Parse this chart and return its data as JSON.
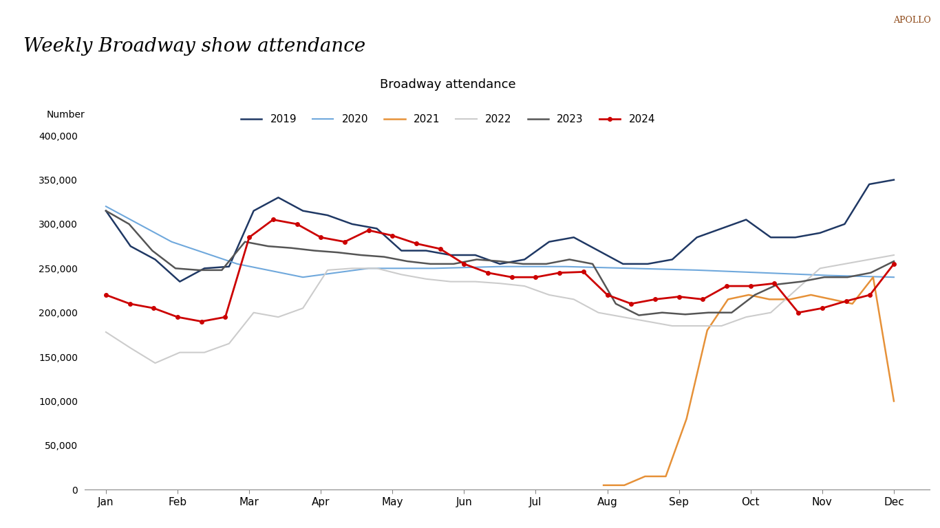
{
  "title": "Weekly Broadway show attendance",
  "chart_title": "Broadway attendance",
  "ylabel": "Number",
  "background_color": "#ffffff",
  "apollo_label": "APOLLO",
  "months": [
    "Jan",
    "Feb",
    "Mar",
    "Apr",
    "May",
    "Jun",
    "Jul",
    "Aug",
    "Sep",
    "Oct",
    "Nov",
    "Dec"
  ],
  "series": {
    "2019": {
      "color": "#1f3864",
      "linewidth": 1.8,
      "marker": null,
      "values": [
        315000,
        275000,
        260000,
        235000,
        250000,
        252000,
        315000,
        330000,
        315000,
        310000,
        300000,
        295000,
        270000,
        270000,
        265000,
        265000,
        255000,
        260000,
        280000,
        285000,
        270000,
        255000,
        255000,
        260000,
        285000,
        295000,
        305000,
        285000,
        285000,
        290000,
        300000,
        345000,
        350000
      ]
    },
    "2020": {
      "color": "#6fa8dc",
      "linewidth": 1.5,
      "marker": null,
      "values": [
        320000,
        280000,
        255000,
        240000,
        250000,
        250000,
        252000,
        252000,
        250000,
        248000,
        245000,
        242000,
        240000
      ]
    },
    "2021": {
      "color": "#e69138",
      "linewidth": 1.8,
      "marker": null,
      "values": [
        null,
        null,
        null,
        null,
        null,
        null,
        null,
        null,
        null,
        null,
        null,
        null,
        null,
        null,
        null,
        null,
        null,
        null,
        null,
        null,
        null,
        null,
        null,
        null,
        5000,
        5000,
        15000,
        15000,
        80000,
        180000,
        215000,
        220000,
        215000,
        215000,
        220000,
        215000,
        210000,
        240000,
        100000
      ]
    },
    "2022": {
      "color": "#cccccc",
      "linewidth": 1.5,
      "marker": null,
      "values": [
        178000,
        160000,
        143000,
        155000,
        155000,
        165000,
        200000,
        195000,
        205000,
        248000,
        250000,
        250000,
        243000,
        238000,
        235000,
        235000,
        233000,
        230000,
        220000,
        215000,
        200000,
        195000,
        190000,
        185000,
        185000,
        185000,
        195000,
        200000,
        225000,
        250000,
        255000,
        260000,
        265000
      ]
    },
    "2023": {
      "color": "#555555",
      "linewidth": 1.8,
      "marker": null,
      "values": [
        315000,
        300000,
        270000,
        250000,
        248000,
        248000,
        280000,
        275000,
        273000,
        270000,
        268000,
        265000,
        263000,
        258000,
        255000,
        255000,
        260000,
        258000,
        255000,
        255000,
        260000,
        255000,
        210000,
        197000,
        200000,
        198000,
        200000,
        200000,
        220000,
        232000,
        235000,
        240000,
        240000,
        245000,
        258000
      ]
    },
    "2024": {
      "color": "#cc0000",
      "linewidth": 2.0,
      "marker": "o",
      "markersize": 4,
      "values": [
        220000,
        210000,
        205000,
        195000,
        190000,
        195000,
        285000,
        305000,
        300000,
        285000,
        280000,
        293000,
        287000,
        278000,
        272000,
        255000,
        245000,
        240000,
        240000,
        245000,
        246000,
        220000,
        210000,
        215000,
        218000,
        215000,
        230000,
        230000,
        233000,
        200000,
        205000,
        213000,
        220000,
        255000
      ]
    }
  },
  "ylim": [
    0,
    410000
  ],
  "yticks": [
    0,
    50000,
    100000,
    150000,
    200000,
    250000,
    300000,
    350000,
    400000
  ]
}
